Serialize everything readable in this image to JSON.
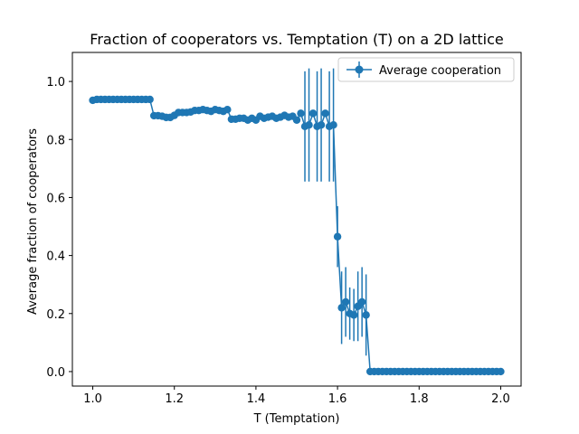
{
  "chart_data": {
    "type": "line",
    "title": "Fraction of cooperators vs. Temptation (T) on a 2D lattice",
    "xlabel": "T (Temptation)",
    "ylabel": "Average fraction of cooperators",
    "xlim": [
      0.95,
      2.05
    ],
    "ylim": [
      -0.05,
      1.1
    ],
    "xticks": [
      1.0,
      1.2,
      1.4,
      1.6,
      1.8,
      2.0
    ],
    "xtick_labels": [
      "1.0",
      "1.2",
      "1.4",
      "1.6",
      "1.8",
      "2.0"
    ],
    "yticks": [
      0.0,
      0.2,
      0.4,
      0.6,
      0.8,
      1.0
    ],
    "ytick_labels": [
      "0.0",
      "0.2",
      "0.4",
      "0.6",
      "0.8",
      "1.0"
    ],
    "grid": false,
    "legend": {
      "position": "top-right",
      "entries": [
        "Average cooperation"
      ]
    },
    "colors": {
      "series": "#1f77b4"
    },
    "series": [
      {
        "name": "Average cooperation",
        "x": [
          1.0,
          1.01,
          1.02,
          1.03,
          1.04,
          1.05,
          1.06,
          1.07,
          1.08,
          1.09,
          1.1,
          1.11,
          1.12,
          1.13,
          1.14,
          1.15,
          1.16,
          1.17,
          1.18,
          1.19,
          1.2,
          1.21,
          1.22,
          1.23,
          1.24,
          1.25,
          1.26,
          1.27,
          1.28,
          1.29,
          1.3,
          1.31,
          1.32,
          1.33,
          1.34,
          1.35,
          1.36,
          1.37,
          1.38,
          1.39,
          1.4,
          1.41,
          1.42,
          1.43,
          1.44,
          1.45,
          1.46,
          1.47,
          1.48,
          1.49,
          1.5,
          1.51,
          1.52,
          1.53,
          1.54,
          1.55,
          1.56,
          1.57,
          1.58,
          1.59,
          1.6,
          1.61,
          1.62,
          1.63,
          1.64,
          1.65,
          1.66,
          1.67,
          1.68,
          1.69,
          1.7,
          1.71,
          1.72,
          1.73,
          1.74,
          1.75,
          1.76,
          1.77,
          1.78,
          1.79,
          1.8,
          1.81,
          1.82,
          1.83,
          1.84,
          1.85,
          1.86,
          1.87,
          1.88,
          1.89,
          1.9,
          1.91,
          1.92,
          1.93,
          1.94,
          1.95,
          1.96,
          1.97,
          1.98,
          1.99,
          2.0
        ],
        "y": [
          0.935,
          0.938,
          0.938,
          0.938,
          0.938,
          0.938,
          0.938,
          0.938,
          0.938,
          0.938,
          0.938,
          0.938,
          0.938,
          0.938,
          0.938,
          0.882,
          0.882,
          0.88,
          0.876,
          0.876,
          0.883,
          0.893,
          0.893,
          0.893,
          0.895,
          0.9,
          0.9,
          0.903,
          0.9,
          0.897,
          0.903,
          0.9,
          0.897,
          0.903,
          0.87,
          0.87,
          0.873,
          0.873,
          0.867,
          0.873,
          0.867,
          0.88,
          0.873,
          0.877,
          0.88,
          0.873,
          0.877,
          0.883,
          0.877,
          0.88,
          0.867,
          0.89,
          0.845,
          0.85,
          0.89,
          0.845,
          0.85,
          0.89,
          0.845,
          0.85,
          0.465,
          0.22,
          0.24,
          0.2,
          0.195,
          0.225,
          0.24,
          0.195,
          0.0,
          0.0,
          0.0,
          0.0,
          0.0,
          0.0,
          0.0,
          0.0,
          0.0,
          0.0,
          0.0,
          0.0,
          0.0,
          0.0,
          0.0,
          0.0,
          0.0,
          0.0,
          0.0,
          0.0,
          0.0,
          0.0,
          0.0,
          0.0,
          0.0,
          0.0,
          0.0,
          0.0,
          0.0,
          0.0,
          0.0,
          0.0,
          0.0
        ],
        "yerr": [
          0,
          0,
          0,
          0,
          0,
          0,
          0,
          0,
          0,
          0,
          0,
          0,
          0,
          0,
          0,
          0,
          0,
          0,
          0,
          0,
          0,
          0,
          0,
          0,
          0,
          0,
          0,
          0,
          0,
          0,
          0,
          0,
          0,
          0,
          0,
          0,
          0,
          0,
          0,
          0,
          0,
          0,
          0,
          0,
          0,
          0,
          0,
          0,
          0,
          0,
          0,
          0,
          0.19,
          0.195,
          0,
          0.19,
          0.195,
          0,
          0.19,
          0.195,
          0.105,
          0.125,
          0.12,
          0.09,
          0.09,
          0.12,
          0.12,
          0.14,
          0,
          0,
          0,
          0,
          0,
          0,
          0,
          0,
          0,
          0,
          0,
          0,
          0,
          0,
          0,
          0,
          0,
          0,
          0,
          0,
          0,
          0,
          0,
          0,
          0,
          0,
          0,
          0,
          0,
          0,
          0,
          0,
          0
        ]
      }
    ]
  }
}
